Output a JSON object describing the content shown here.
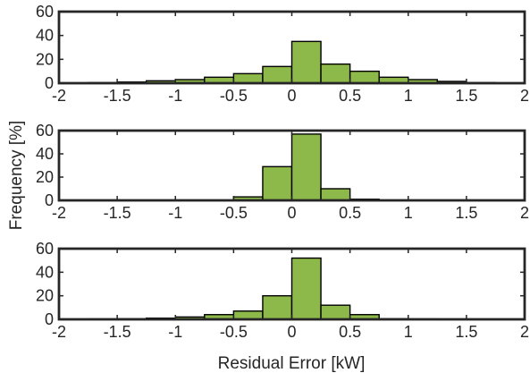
{
  "chart_data": [
    {
      "type": "bar",
      "bin_edges": [
        -1.75,
        -1.5,
        -1.25,
        -1.0,
        -0.75,
        -0.5,
        -0.25,
        0.0,
        0.25,
        0.5,
        0.75,
        1.0,
        1.25,
        1.5,
        1.75
      ],
      "values": [
        0.5,
        1,
        2,
        3,
        5,
        8,
        14,
        35,
        16,
        10,
        5,
        3,
        1.5,
        0.5
      ],
      "xlim": [
        -2,
        2
      ],
      "ylim": [
        0,
        60
      ],
      "xticks": [
        "-2",
        "-1.5",
        "-1",
        "-0.5",
        "0",
        "0.5",
        "1",
        "1.5",
        "2"
      ],
      "yticks": [
        "0",
        "20",
        "40",
        "60"
      ],
      "bar_color": "#8db84a"
    },
    {
      "type": "bar",
      "bin_edges": [
        -0.5,
        -0.25,
        0.0,
        0.25,
        0.5,
        0.75
      ],
      "values": [
        3,
        29,
        57,
        10,
        1
      ],
      "xlim": [
        -2,
        2
      ],
      "ylim": [
        0,
        60
      ],
      "xticks": [
        "-2",
        "-1.5",
        "-1",
        "-0.5",
        "0",
        "0.5",
        "1",
        "1.5",
        "2"
      ],
      "yticks": [
        "0",
        "20",
        "40",
        "60"
      ],
      "bar_color": "#8db84a"
    },
    {
      "type": "bar",
      "bin_edges": [
        -1.75,
        -1.5,
        -1.25,
        -1.0,
        -0.75,
        -0.5,
        -0.25,
        0.0,
        0.25,
        0.5,
        0.75,
        1.0,
        1.25
      ],
      "values": [
        0.3,
        0.5,
        1,
        2,
        4,
        7,
        20,
        52,
        12,
        4,
        0.5,
        0.3
      ],
      "xlim": [
        -2,
        2
      ],
      "ylim": [
        0,
        60
      ],
      "xticks": [
        "-2",
        "-1.5",
        "-1",
        "-0.5",
        "0",
        "0.5",
        "1",
        "1.5",
        "2"
      ],
      "yticks": [
        "0",
        "20",
        "40",
        "60"
      ],
      "bar_color": "#8db84a"
    }
  ],
  "labels": {
    "ylabel": "Frequency [%]",
    "xlabel": "Residual Error [kW]"
  }
}
